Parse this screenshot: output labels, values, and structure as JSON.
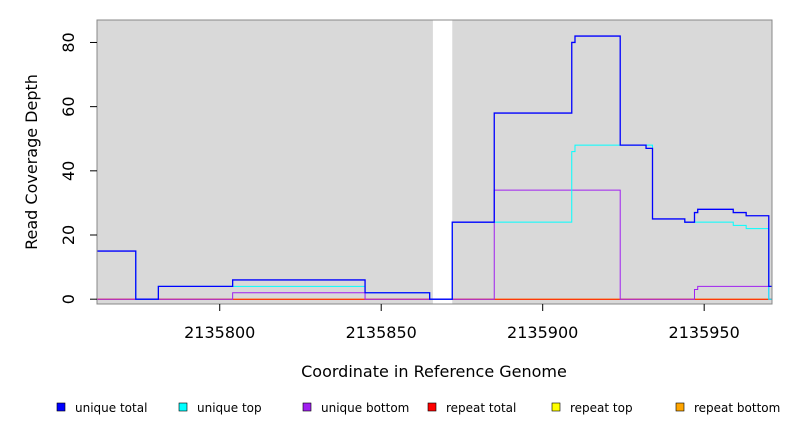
{
  "chart_data": {
    "type": "line",
    "title": "",
    "xlabel": "Coordinate in Reference Genome",
    "ylabel": "Read Coverage Depth",
    "xlim": [
      2135762,
      2135971
    ],
    "ylim": [
      -1.5,
      87
    ],
    "x_ticks": [
      2135800,
      2135850,
      2135900,
      2135950
    ],
    "x_tick_labels": [
      "2135800",
      "2135850",
      "2135900",
      "2135950"
    ],
    "y_ticks": [
      0,
      20,
      40,
      60,
      80
    ],
    "y_tick_labels": [
      "0",
      "20",
      "40",
      "60",
      "80"
    ],
    "grid": false,
    "background_color": "#d9d9d9",
    "gap_regions": [
      [
        2135866,
        2135872
      ]
    ],
    "legend_position": "bottom",
    "series": [
      {
        "name": "unique total",
        "color": "#0000ff",
        "points": [
          [
            2135762,
            15
          ],
          [
            2135774,
            15
          ],
          [
            2135774,
            0
          ],
          [
            2135781,
            0
          ],
          [
            2135781,
            4
          ],
          [
            2135804,
            4
          ],
          [
            2135804,
            6
          ],
          [
            2135845,
            6
          ],
          [
            2135845,
            2
          ],
          [
            2135865,
            2
          ],
          [
            2135865,
            0
          ],
          [
            2135872,
            0
          ],
          [
            2135872,
            24
          ],
          [
            2135885,
            24
          ],
          [
            2135885,
            58
          ],
          [
            2135909,
            58
          ],
          [
            2135909,
            80
          ],
          [
            2135910,
            80
          ],
          [
            2135910,
            82
          ],
          [
            2135924,
            82
          ],
          [
            2135924,
            48
          ],
          [
            2135932,
            48
          ],
          [
            2135932,
            47
          ],
          [
            2135934,
            47
          ],
          [
            2135934,
            25
          ],
          [
            2135944,
            25
          ],
          [
            2135944,
            24
          ],
          [
            2135947,
            24
          ],
          [
            2135947,
            27
          ],
          [
            2135948,
            27
          ],
          [
            2135948,
            28
          ],
          [
            2135959,
            28
          ],
          [
            2135959,
            27
          ],
          [
            2135963,
            27
          ],
          [
            2135963,
            26
          ],
          [
            2135970,
            26
          ],
          [
            2135970,
            4
          ],
          [
            2135971,
            4
          ]
        ]
      },
      {
        "name": "unique top",
        "color": "#00ffff",
        "points": [
          [
            2135762,
            15
          ],
          [
            2135774,
            15
          ],
          [
            2135774,
            0
          ],
          [
            2135781,
            0
          ],
          [
            2135781,
            4
          ],
          [
            2135845,
            4
          ],
          [
            2135845,
            2
          ],
          [
            2135865,
            2
          ],
          [
            2135865,
            0
          ],
          [
            2135872,
            0
          ],
          [
            2135872,
            24
          ],
          [
            2135909,
            24
          ],
          [
            2135909,
            46
          ],
          [
            2135910,
            46
          ],
          [
            2135910,
            48
          ],
          [
            2135934,
            48
          ],
          [
            2135934,
            25
          ],
          [
            2135944,
            25
          ],
          [
            2135944,
            24
          ],
          [
            2135959,
            24
          ],
          [
            2135959,
            23
          ],
          [
            2135963,
            23
          ],
          [
            2135963,
            22
          ],
          [
            2135970,
            22
          ],
          [
            2135970,
            0
          ],
          [
            2135971,
            0
          ]
        ]
      },
      {
        "name": "unique bottom",
        "color": "#a020f0",
        "points": [
          [
            2135762,
            0
          ],
          [
            2135804,
            0
          ],
          [
            2135804,
            2
          ],
          [
            2135845,
            2
          ],
          [
            2135845,
            0
          ],
          [
            2135885,
            0
          ],
          [
            2135885,
            34
          ],
          [
            2135924,
            34
          ],
          [
            2135924,
            0
          ],
          [
            2135947,
            0
          ],
          [
            2135947,
            3
          ],
          [
            2135948,
            3
          ],
          [
            2135948,
            4
          ],
          [
            2135970,
            4
          ],
          [
            2135970,
            0
          ],
          [
            2135971,
            0
          ]
        ]
      },
      {
        "name": "repeat total",
        "color": "#ff0000",
        "points": [
          [
            2135762,
            0
          ],
          [
            2135971,
            0
          ]
        ]
      },
      {
        "name": "repeat top",
        "color": "#ffff00",
        "points": [
          [
            2135762,
            0
          ],
          [
            2135971,
            0
          ]
        ]
      },
      {
        "name": "repeat bottom",
        "color": "#ffa500",
        "points": [
          [
            2135762,
            0
          ],
          [
            2135971,
            0
          ]
        ]
      }
    ]
  }
}
